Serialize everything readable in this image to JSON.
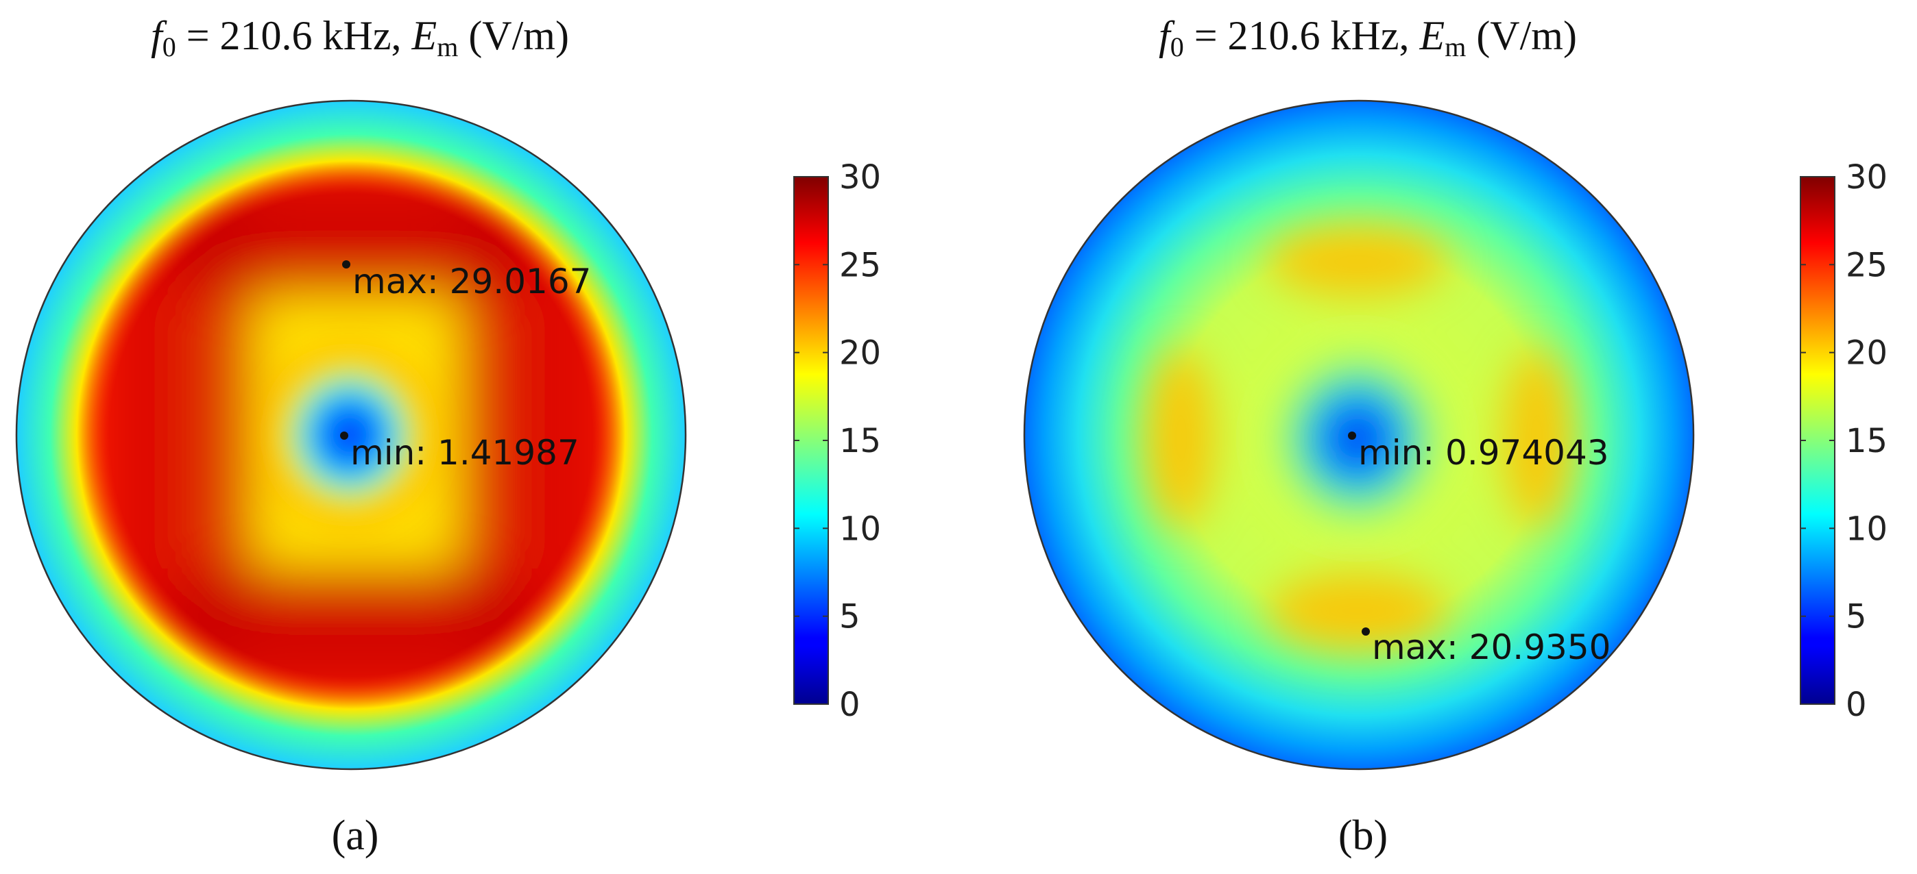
{
  "chart_data": [
    {
      "type": "heatmap",
      "panel": "(a)",
      "title": {
        "f_sym": "f",
        "f_sub": "0",
        "freq_text": " = 210.6 kHz, ",
        "e_sym": "E",
        "e_sub": "m",
        "unit": " (V/m)"
      },
      "colorbar": {
        "min": 0,
        "max": 30,
        "ticks": [
          "30",
          "25",
          "20",
          "15",
          "10",
          "5",
          "0"
        ],
        "colormap": "jet"
      },
      "max_label": "max: 29.0167",
      "min_label": "min: 1.41987",
      "max_value": 29.0167,
      "min_value": 1.41987,
      "field_pattern": "ring of high field (red) with four lobes, low field at center, cyan rim"
    },
    {
      "type": "heatmap",
      "panel": "(b)",
      "title": {
        "f_sym": "f",
        "f_sub": "0",
        "freq_text": " = 210.6 kHz, ",
        "e_sym": "E",
        "e_sub": "m",
        "unit": " (V/m)"
      },
      "colorbar": {
        "min": 0,
        "max": 30,
        "ticks": [
          "30",
          "25",
          "20",
          "15",
          "10",
          "5",
          "0"
        ],
        "colormap": "jet"
      },
      "max_label": "max: 20.9350",
      "min_label": "min: 0.974043",
      "max_value": 20.935,
      "min_value": 0.974043,
      "field_pattern": "yellow-green field with four orange lobes, blue center and blue rim"
    }
  ]
}
